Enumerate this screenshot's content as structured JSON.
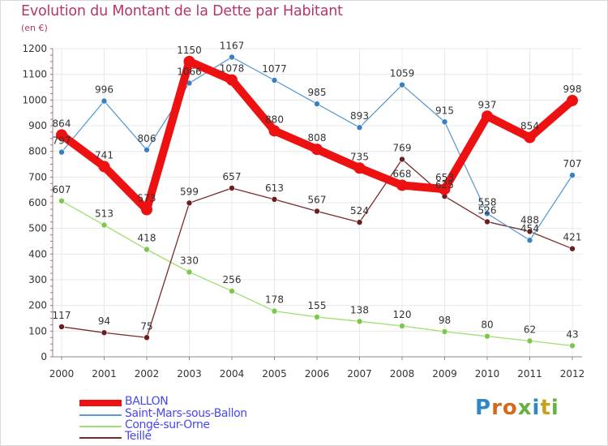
{
  "title": "Evolution du Montant de la Dette par Habitant",
  "subtitle": "(en €)",
  "logo": {
    "letters": [
      "P",
      "r",
      "o",
      "x",
      "i",
      "t",
      "i"
    ],
    "colors": [
      "#2f86c9",
      "#d36b1f",
      "#d36b1f",
      "#66b23e",
      "#2f86c9",
      "#c8a21c",
      "#66b23e"
    ]
  },
  "colors": {
    "title": "#b5366a",
    "grid": "#e8e8e8",
    "axis": "#888888",
    "tick_minor": "#e34a7a",
    "legend_text": "#4848f0"
  },
  "chart_data": {
    "type": "line",
    "title": "Evolution du Montant de la Dette par Habitant",
    "subtitle": "(en €)",
    "x": [
      "2000",
      "2001",
      "2002",
      "2003",
      "2004",
      "2005",
      "2006",
      "2007",
      "2008",
      "2009",
      "2010",
      "2011",
      "2012"
    ],
    "yticks": [
      0,
      100,
      200,
      300,
      400,
      500,
      600,
      700,
      800,
      900,
      1000,
      1100,
      1200
    ],
    "ylim": [
      0,
      1200
    ],
    "grid": true,
    "legend_position": "bottom-left",
    "series": [
      {
        "name": "BALLON",
        "color": "#ee1111",
        "values": [
          864,
          741,
          573,
          1150,
          1078,
          880,
          808,
          735,
          668,
          653,
          937,
          854,
          998
        ],
        "labels": [
          "864",
          "741",
          "573",
          "1150",
          "1078",
          "880",
          "808",
          "735",
          "668",
          "653",
          "937",
          "854",
          "998"
        ]
      },
      {
        "name": "Saint-Mars-sous-Ballon",
        "color": "#5b9bd5",
        "marker": "#3a7fc0",
        "values": [
          797,
          996,
          806,
          1066,
          1167,
          1077,
          985,
          893,
          1059,
          915,
          558,
          454,
          707
        ],
        "labels": [
          "797",
          "996",
          "806",
          "1066",
          "1167",
          "1077",
          "985",
          "893",
          "1059",
          "915",
          "558",
          "454",
          "707"
        ]
      },
      {
        "name": "Congé-sur-Orne",
        "color": "#9ee06f",
        "marker": "#7cc84a",
        "values": [
          607,
          513,
          418,
          330,
          256,
          178,
          155,
          138,
          120,
          98,
          80,
          62,
          43
        ],
        "labels": [
          "607",
          "513",
          "418",
          "330",
          "256",
          "178",
          "155",
          "138",
          "120",
          "98",
          "80",
          "62",
          "43"
        ]
      },
      {
        "name": "Teillé",
        "color": "#7a2a2a",
        "marker": "#6b1e1e",
        "values": [
          117,
          94,
          75,
          599,
          657,
          613,
          567,
          524,
          769,
          625,
          526,
          488,
          421
        ],
        "labels": [
          "117",
          "94",
          "75",
          "599",
          "657",
          "613",
          "567",
          "524",
          "769",
          "625",
          "526",
          "488",
          "421"
        ]
      }
    ]
  }
}
